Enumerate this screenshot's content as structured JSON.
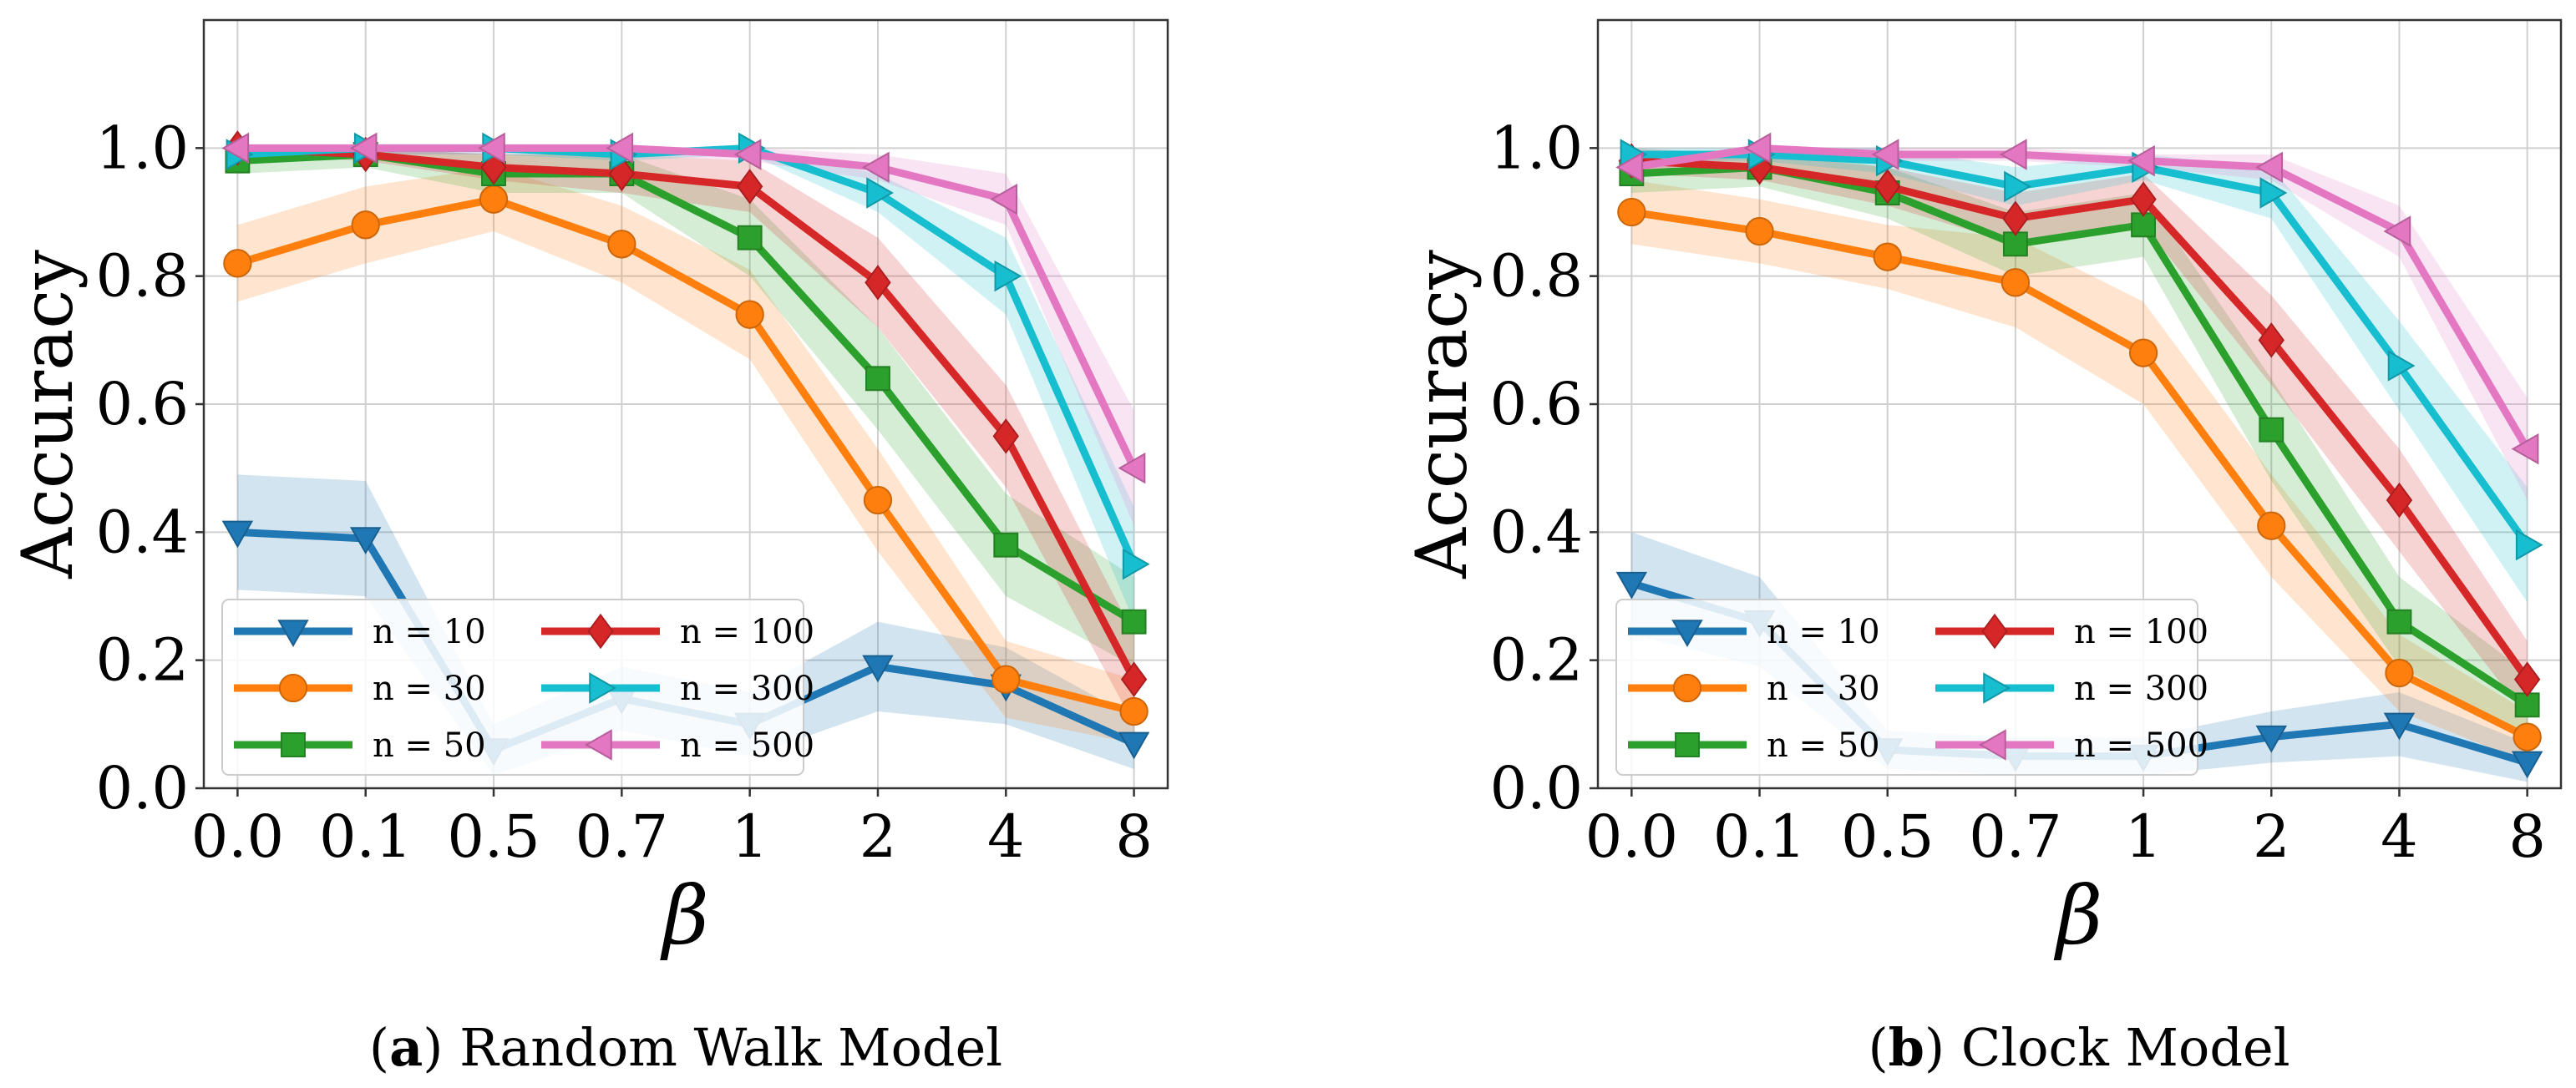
{
  "chart_data": [
    {
      "type": "line",
      "caption_letter": "a",
      "caption_text": "Random Walk Model",
      "xlabel": "β",
      "ylabel": "Accuracy",
      "categories": [
        "0.0",
        "0.1",
        "0.5",
        "0.7",
        "1",
        "2",
        "4",
        "8"
      ],
      "ylim": [
        0,
        1.2
      ],
      "yticks": [
        "0.0",
        "0.2",
        "0.4",
        "0.6",
        "0.8",
        "1.0"
      ],
      "grid": true,
      "legend_position": "lower-left",
      "series": [
        {
          "name": "n = 10",
          "color": "#1f77b4",
          "marker": "triangle-down",
          "values": [
            0.4,
            0.39,
            0.06,
            0.14,
            0.1,
            0.19,
            0.16,
            0.07
          ],
          "band": [
            0.09,
            0.09,
            0.04,
            0.05,
            0.05,
            0.07,
            0.06,
            0.04
          ]
        },
        {
          "name": "n = 30",
          "color": "#ff7f0e",
          "marker": "circle",
          "values": [
            0.82,
            0.88,
            0.92,
            0.85,
            0.74,
            0.45,
            0.17,
            0.12
          ],
          "band": [
            0.06,
            0.06,
            0.05,
            0.06,
            0.07,
            0.08,
            0.06,
            0.05
          ]
        },
        {
          "name": "n = 50",
          "color": "#2ca02c",
          "marker": "square",
          "values": [
            0.98,
            0.99,
            0.96,
            0.96,
            0.86,
            0.64,
            0.38,
            0.26
          ],
          "band": [
            0.02,
            0.02,
            0.03,
            0.03,
            0.06,
            0.08,
            0.08,
            0.07
          ]
        },
        {
          "name": "n = 100",
          "color": "#d62728",
          "marker": "diamond",
          "values": [
            1.0,
            0.99,
            0.97,
            0.96,
            0.94,
            0.79,
            0.55,
            0.17
          ],
          "band": [
            0.01,
            0.01,
            0.02,
            0.03,
            0.04,
            0.07,
            0.08,
            0.07
          ]
        },
        {
          "name": "n = 300",
          "color": "#17becf",
          "marker": "triangle-right",
          "values": [
            0.99,
            1.0,
            1.0,
            0.99,
            1.0,
            0.93,
            0.8,
            0.35
          ],
          "band": [
            0.01,
            0.01,
            0.01,
            0.01,
            0.01,
            0.03,
            0.06,
            0.09
          ]
        },
        {
          "name": "n = 500",
          "color": "#e377c2",
          "marker": "triangle-left",
          "values": [
            1.0,
            1.0,
            1.0,
            1.0,
            0.99,
            0.97,
            0.92,
            0.5
          ],
          "band": [
            0.01,
            0.01,
            0.01,
            0.01,
            0.01,
            0.02,
            0.04,
            0.09
          ]
        }
      ]
    },
    {
      "type": "line",
      "caption_letter": "b",
      "caption_text": "Clock Model",
      "xlabel": "β",
      "ylabel": "Accuracy",
      "categories": [
        "0.0",
        "0.1",
        "0.5",
        "0.7",
        "1",
        "2",
        "4",
        "8"
      ],
      "ylim": [
        0,
        1.2
      ],
      "yticks": [
        "0.0",
        "0.2",
        "0.4",
        "0.6",
        "0.8",
        "1.0"
      ],
      "grid": true,
      "legend_position": "lower-left",
      "series": [
        {
          "name": "n = 10",
          "color": "#1f77b4",
          "marker": "triangle-down",
          "values": [
            0.32,
            0.26,
            0.06,
            0.05,
            0.05,
            0.08,
            0.1,
            0.04
          ],
          "band": [
            0.08,
            0.07,
            0.03,
            0.03,
            0.03,
            0.04,
            0.05,
            0.03
          ]
        },
        {
          "name": "n = 30",
          "color": "#ff7f0e",
          "marker": "circle",
          "values": [
            0.9,
            0.87,
            0.83,
            0.79,
            0.68,
            0.41,
            0.18,
            0.08
          ],
          "band": [
            0.05,
            0.05,
            0.05,
            0.07,
            0.08,
            0.08,
            0.06,
            0.04
          ]
        },
        {
          "name": "n = 50",
          "color": "#2ca02c",
          "marker": "square",
          "values": [
            0.96,
            0.97,
            0.93,
            0.85,
            0.88,
            0.56,
            0.26,
            0.13
          ],
          "band": [
            0.03,
            0.03,
            0.04,
            0.05,
            0.05,
            0.08,
            0.07,
            0.05
          ]
        },
        {
          "name": "n = 100",
          "color": "#d62728",
          "marker": "diamond",
          "values": [
            0.98,
            0.97,
            0.94,
            0.89,
            0.92,
            0.7,
            0.45,
            0.17
          ],
          "band": [
            0.02,
            0.02,
            0.03,
            0.04,
            0.04,
            0.07,
            0.08,
            0.06
          ]
        },
        {
          "name": "n = 300",
          "color": "#17becf",
          "marker": "triangle-right",
          "values": [
            0.99,
            0.99,
            0.98,
            0.94,
            0.97,
            0.93,
            0.66,
            0.38
          ],
          "band": [
            0.01,
            0.01,
            0.02,
            0.03,
            0.02,
            0.04,
            0.07,
            0.09
          ]
        },
        {
          "name": "n = 500",
          "color": "#e377c2",
          "marker": "triangle-left",
          "values": [
            0.97,
            1.0,
            0.99,
            0.99,
            0.98,
            0.97,
            0.87,
            0.53
          ],
          "band": [
            0.01,
            0.01,
            0.01,
            0.01,
            0.01,
            0.02,
            0.04,
            0.08
          ]
        }
      ]
    }
  ]
}
